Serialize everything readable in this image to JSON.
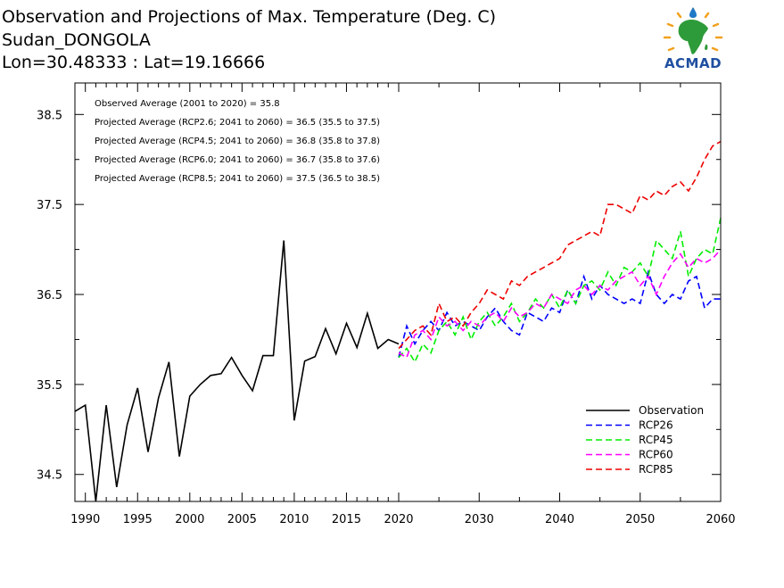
{
  "header": {
    "title": "Observation and Projections of Max. Temperature (Deg. C)",
    "station": "Sudan_DONGOLA",
    "coords": "Lon=30.48333 : Lat=19.16666"
  },
  "logo": {
    "text": "ACMAD",
    "icon": "africa-map-icon",
    "brand_color": "#1f4fa0",
    "accent_color": "#f2a11c"
  },
  "stats": [
    "Observed Average (2001 to 2020) = 35.8",
    "Projected Average (RCP2.6; 2041 to 2060) = 36.5 (35.5 to 37.5)",
    "Projected Average (RCP4.5; 2041 to 2060) = 36.8 (35.8 to 37.8)",
    "Projected Average (RCP6.0; 2041 to 2060) = 36.7 (35.8 to 37.6)",
    "Projected Average (RCP8.5; 2041 to 2060) = 37.5 (36.5 to 38.5)"
  ],
  "chart_data": {
    "type": "line",
    "title": "Observation and Projections of Max. Temperature (Deg. C)",
    "xlim": [
      1989,
      2060
    ],
    "ylim": [
      34.2,
      38.85
    ],
    "legend_position": "bottom-right",
    "grid": false,
    "x_ticks_labeled": [
      1990,
      1995,
      2000,
      2005,
      2010,
      2015,
      2020,
      2030,
      2040,
      2050,
      2060
    ],
    "y_ticks_labeled": [
      34.5,
      35.5,
      36.5,
      37.5,
      38.5
    ],
    "series": [
      {
        "name": "Observation",
        "color": "#000000",
        "dash": "solid",
        "x": [
          1989,
          1990,
          1991,
          1992,
          1993,
          1994,
          1995,
          1996,
          1997,
          1998,
          1999,
          2000,
          2001,
          2002,
          2003,
          2004,
          2005,
          2006,
          2007,
          2008,
          2009,
          2010,
          2011,
          2012,
          2013,
          2014,
          2015,
          2016,
          2017,
          2018,
          2019,
          2020
        ],
        "y": [
          35.2,
          35.27,
          34.2,
          35.27,
          34.36,
          35.05,
          35.46,
          34.75,
          35.35,
          35.75,
          34.7,
          35.37,
          35.5,
          35.6,
          35.62,
          35.8,
          35.6,
          35.43,
          35.82,
          35.82,
          37.1,
          35.1,
          35.76,
          35.81,
          36.12,
          35.84,
          36.18,
          35.91,
          36.29,
          35.9,
          36.0,
          35.95
        ]
      },
      {
        "name": "RCP26",
        "color": "#0000ff",
        "dash": "dashed",
        "x": [
          2020,
          2021,
          2022,
          2023,
          2024,
          2025,
          2026,
          2027,
          2028,
          2029,
          2030,
          2031,
          2032,
          2033,
          2034,
          2035,
          2036,
          2037,
          2038,
          2039,
          2040,
          2041,
          2042,
          2043,
          2044,
          2045,
          2046,
          2047,
          2048,
          2049,
          2050,
          2051,
          2052,
          2053,
          2054,
          2055,
          2056,
          2057,
          2058,
          2059,
          2060
        ],
        "y": [
          35.8,
          36.15,
          35.95,
          36.1,
          36.2,
          36.1,
          36.3,
          36.15,
          36.2,
          36.15,
          36.1,
          36.25,
          36.35,
          36.2,
          36.1,
          36.05,
          36.3,
          36.25,
          36.2,
          36.35,
          36.3,
          36.55,
          36.4,
          36.7,
          36.45,
          36.6,
          36.5,
          36.45,
          36.4,
          36.45,
          36.4,
          36.75,
          36.5,
          36.4,
          36.5,
          36.45,
          36.65,
          36.7,
          36.35,
          36.45,
          36.45
        ]
      },
      {
        "name": "RCP45",
        "color": "#00ee00",
        "dash": "dashed",
        "x": [
          2020,
          2021,
          2022,
          2023,
          2024,
          2025,
          2026,
          2027,
          2028,
          2029,
          2030,
          2031,
          2032,
          2033,
          2034,
          2035,
          2036,
          2037,
          2038,
          2039,
          2040,
          2041,
          2042,
          2043,
          2044,
          2045,
          2046,
          2047,
          2048,
          2049,
          2050,
          2051,
          2052,
          2053,
          2054,
          2055,
          2056,
          2057,
          2058,
          2059,
          2060
        ],
        "y": [
          35.8,
          35.9,
          35.75,
          35.95,
          35.85,
          36.1,
          36.2,
          36.05,
          36.25,
          36.0,
          36.2,
          36.3,
          36.15,
          36.25,
          36.4,
          36.2,
          36.3,
          36.45,
          36.35,
          36.5,
          36.35,
          36.55,
          36.4,
          36.6,
          36.65,
          36.55,
          36.75,
          36.6,
          36.8,
          36.75,
          36.85,
          36.7,
          37.1,
          37.0,
          36.9,
          37.2,
          36.7,
          36.9,
          37.0,
          36.95,
          37.35
        ]
      },
      {
        "name": "RCP60",
        "color": "#ff00ff",
        "dash": "dashed",
        "x": [
          2020,
          2021,
          2022,
          2023,
          2024,
          2025,
          2026,
          2027,
          2028,
          2029,
          2030,
          2031,
          2032,
          2033,
          2034,
          2035,
          2036,
          2037,
          2038,
          2039,
          2040,
          2041,
          2042,
          2043,
          2044,
          2045,
          2046,
          2047,
          2048,
          2049,
          2050,
          2051,
          2052,
          2053,
          2054,
          2055,
          2056,
          2057,
          2058,
          2059,
          2060
        ],
        "y": [
          35.85,
          35.8,
          36.05,
          36.1,
          36.0,
          36.25,
          36.15,
          36.2,
          36.1,
          36.2,
          36.15,
          36.25,
          36.3,
          36.2,
          36.35,
          36.25,
          36.3,
          36.4,
          36.35,
          36.5,
          36.45,
          36.4,
          36.55,
          36.6,
          36.5,
          36.6,
          36.55,
          36.65,
          36.7,
          36.75,
          36.6,
          36.7,
          36.5,
          36.7,
          36.85,
          36.95,
          36.8,
          36.9,
          36.85,
          36.9,
          37.0
        ]
      },
      {
        "name": "RCP85",
        "color": "#ee0000",
        "dash": "dashed",
        "x": [
          2020,
          2021,
          2022,
          2023,
          2024,
          2025,
          2026,
          2027,
          2028,
          2029,
          2030,
          2031,
          2032,
          2033,
          2034,
          2035,
          2036,
          2037,
          2038,
          2039,
          2040,
          2041,
          2042,
          2043,
          2044,
          2045,
          2046,
          2047,
          2048,
          2049,
          2050,
          2051,
          2052,
          2053,
          2054,
          2055,
          2056,
          2057,
          2058,
          2059,
          2060
        ],
        "y": [
          35.9,
          36.0,
          36.1,
          36.15,
          36.05,
          36.4,
          36.2,
          36.25,
          36.15,
          36.3,
          36.4,
          36.55,
          36.5,
          36.45,
          36.65,
          36.6,
          36.7,
          36.75,
          36.8,
          36.85,
          36.9,
          37.05,
          37.1,
          37.15,
          37.2,
          37.15,
          37.5,
          37.5,
          37.45,
          37.4,
          37.6,
          37.55,
          37.65,
          37.6,
          37.7,
          37.75,
          37.65,
          37.8,
          38.0,
          38.15,
          38.2
        ]
      }
    ]
  }
}
